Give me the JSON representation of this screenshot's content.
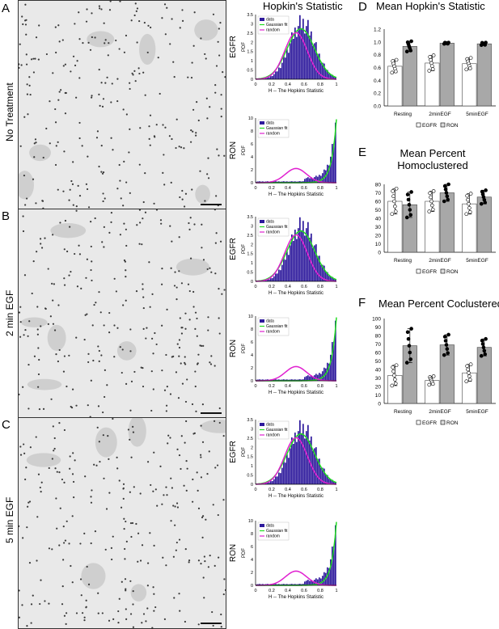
{
  "panels": {
    "A": {
      "letter": "A",
      "label": "No Treatment"
    },
    "B": {
      "letter": "B",
      "label": "2 min EGF"
    },
    "C": {
      "letter": "C",
      "label": "5 min EGF"
    },
    "D": {
      "letter": "D",
      "title": "Mean Hopkin's Statistic"
    },
    "E": {
      "letter": "E",
      "title": "Mean Percent Homoclustered"
    },
    "F": {
      "letter": "F",
      "title": "Mean Percent Coclustered"
    }
  },
  "hist_header": "Hopkin's Statistic",
  "histograms": [
    {
      "protein": "EGFR",
      "ylabel": "PDF",
      "xlabel": "H -- The Hopkins Statistic",
      "yticks": [
        "0",
        "0.5",
        "1",
        "1.5",
        "2",
        "2.5",
        "3",
        "3.5"
      ],
      "xticks": [
        "0",
        "0.2",
        "0.4",
        "0.6",
        "0.8",
        "1"
      ],
      "legend": [
        "data",
        "Gaussian fit",
        "random"
      ]
    },
    {
      "protein": "RON",
      "ylabel": "PDF",
      "xlabel": "H -- The Hopkins Statistic",
      "yticks": [
        "0",
        "2",
        "4",
        "6",
        "8",
        "10"
      ],
      "xticks": [
        "0",
        "0.2",
        "0.4",
        "0.6",
        "0.8",
        "1"
      ],
      "legend": [
        "data",
        "Gaussian fit",
        "random"
      ]
    },
    {
      "protein": "EGFR",
      "ylabel": "PDF",
      "xlabel": "H -- The Hopkins Statistic",
      "yticks": [
        "0",
        "0.5",
        "1",
        "1.5",
        "2",
        "2.5",
        "3",
        "3.5"
      ],
      "xticks": [
        "0",
        "0.2",
        "0.4",
        "0.6",
        "0.8",
        "1"
      ],
      "legend": [
        "data",
        "Gaussian fit",
        "random"
      ]
    },
    {
      "protein": "RON",
      "ylabel": "PDF",
      "xlabel": "H -- The Hopkins Statistic",
      "yticks": [
        "0",
        "2",
        "4",
        "6",
        "8",
        "10"
      ],
      "xticks": [
        "0",
        "0.2",
        "0.4",
        "0.6",
        "0.8",
        "1"
      ],
      "legend": [
        "data",
        "Gaussian fit",
        "random"
      ]
    },
    {
      "protein": "EGFR",
      "ylabel": "PDF",
      "xlabel": "H -- The Hopkins Statistic",
      "yticks": [
        "0",
        "0.5",
        "1",
        "1.5",
        "2",
        "2.5",
        "3",
        "3.5"
      ],
      "xticks": [
        "0",
        "0.2",
        "0.4",
        "0.6",
        "0.8",
        "1"
      ],
      "legend": [
        "data",
        "Gaussian fit",
        "random"
      ]
    },
    {
      "protein": "RON",
      "ylabel": "PDF",
      "xlabel": "H -- The Hopkins Statistic",
      "yticks": [
        "0",
        "2",
        "4",
        "6",
        "8",
        "10"
      ],
      "xticks": [
        "0",
        "0.2",
        "0.4",
        "0.6",
        "0.8",
        "1"
      ],
      "legend": [
        "data",
        "Gaussian fit",
        "random"
      ]
    }
  ],
  "bar_charts": [
    {
      "categories": [
        "Resting",
        "2minEGF",
        "5minEGF"
      ],
      "yticks": [
        "0.0",
        "0.2",
        "0.4",
        "0.6",
        "0.8",
        "1.0",
        "1.2"
      ],
      "ylim": [
        0,
        1.2
      ],
      "series": [
        {
          "name": "EGFR",
          "values": [
            0.62,
            0.67,
            0.66
          ],
          "err": [
            0.1,
            0.12,
            0.09
          ]
        },
        {
          "name": "RON",
          "values": [
            0.93,
            0.98,
            0.97
          ],
          "err": [
            0.08,
            0.01,
            0.02
          ]
        }
      ],
      "legend": [
        "EGFR",
        "RON"
      ]
    },
    {
      "categories": [
        "Resting",
        "2minEGF",
        "5minEGF"
      ],
      "yticks": [
        "0",
        "10",
        "20",
        "30",
        "40",
        "50",
        "60",
        "70",
        "80"
      ],
      "ylim": [
        0,
        80
      ],
      "series": [
        {
          "name": "EGFR",
          "values": [
            60,
            60,
            57
          ],
          "err": [
            15,
            12,
            12
          ]
        },
        {
          "name": "RON",
          "values": [
            56,
            70,
            65
          ],
          "err": [
            15,
            10,
            8
          ]
        }
      ],
      "legend": [
        "EGFR",
        "RON"
      ]
    },
    {
      "categories": [
        "Resting",
        "2minEGF",
        "5minEGF"
      ],
      "yticks": [
        "0",
        "10",
        "20",
        "30",
        "40",
        "50",
        "60",
        "70",
        "80",
        "90",
        "100"
      ],
      "ylim": [
        0,
        100
      ],
      "series": [
        {
          "name": "EGFR",
          "values": [
            33,
            27,
            36
          ],
          "err": [
            12,
            5,
            10
          ]
        },
        {
          "name": "RON",
          "values": [
            68,
            69,
            66
          ],
          "err": [
            20,
            12,
            10
          ]
        }
      ],
      "legend": [
        "EGFR",
        "RON"
      ]
    }
  ],
  "colors": {
    "data": "#2e1a9c",
    "gaussian": "#22dd22",
    "random": "#e020d0",
    "bar_egfr": "#ffffff",
    "bar_ron": "#a8a8a8"
  }
}
